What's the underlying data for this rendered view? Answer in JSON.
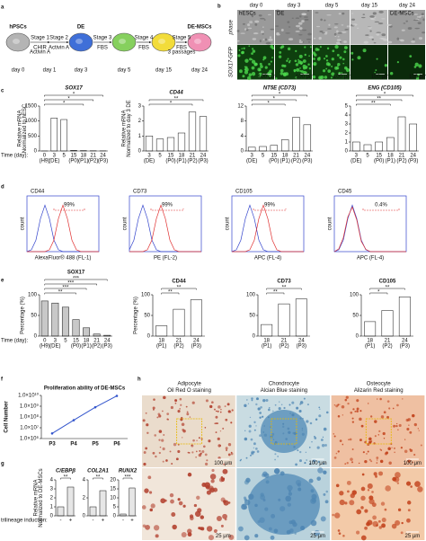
{
  "panel_labels": [
    "a",
    "b",
    "c",
    "d",
    "e",
    "f",
    "g",
    "h"
  ],
  "scheme": {
    "cells": [
      {
        "label": "hPSCs",
        "color": "#b4b4b4"
      },
      {
        "label": "DE",
        "color": "#3f6fd8"
      },
      {
        "color": "#86d05e"
      },
      {
        "color": "#f2dc3a"
      },
      {
        "label": "DE-MSCs",
        "color": "#f090b4"
      }
    ],
    "steps": [
      {
        "stage": "Stage 1",
        "reagents": [
          "CHIR",
          "Activin A"
        ]
      },
      {
        "stage": "Stage 2",
        "reagents": [
          "Activin A"
        ]
      },
      {
        "stage": "Stage 3",
        "reagents": [
          "FBS"
        ]
      },
      {
        "stage": "Stage 4",
        "reagents": [
          "FBS"
        ]
      },
      {
        "stage": "Stage 5",
        "reagents": [
          "FBS",
          "3 passages"
        ]
      }
    ],
    "days": [
      "day 0",
      "day 1",
      "day 3",
      "day 5",
      "day 15",
      "day 24"
    ]
  },
  "micrographs": {
    "days": [
      "day 0",
      "day 3",
      "day 5",
      "day 15",
      "day 24"
    ],
    "tags": [
      "hESCs",
      "DE",
      null,
      null,
      "DE-MSCs"
    ],
    "rows": [
      "phase",
      "SOX17-GFP"
    ],
    "scale_bar": "100 μm"
  },
  "chart_data": [
    {
      "type": "bar",
      "title": "SOX17",
      "categories": [
        "0",
        "3",
        "5",
        "15",
        "18",
        "21",
        "24"
      ],
      "category_sublabels": [
        "(H9)",
        "(DE)",
        null,
        "(P0)",
        "(P1)",
        "(P2)",
        "(P3)"
      ],
      "x_prefix": "Time (day):",
      "values": [
        1,
        1100,
        1050,
        20,
        12,
        8,
        5
      ],
      "bar_color": "#ffffff",
      "ylabel": [
        "Relative mRNA",
        "Normalized to hESC"
      ],
      "ylim": [
        0,
        1500
      ],
      "yticks": [
        0,
        500,
        1000,
        1500
      ],
      "annotations": [
        {
          "text": "*",
          "from": 0,
          "to": 6
        },
        {
          "text": "*",
          "from": 0,
          "to": 5
        },
        {
          "text": "*",
          "from": 0,
          "to": 4
        }
      ]
    },
    {
      "type": "bar",
      "title": "CD44",
      "categories": [
        "3",
        "5",
        "15",
        "18",
        "21",
        "24"
      ],
      "category_sublabels": [
        "(DE)",
        null,
        "(P0)",
        "(P1)",
        "(P2)",
        "(P3)"
      ],
      "values": [
        1,
        0.8,
        0.9,
        1.2,
        2.6,
        2.3
      ],
      "bar_color": "#ffffff",
      "ylabel": [
        "Relative mRNA",
        "Normalized to day 3 DE"
      ],
      "ylim": [
        0,
        3
      ],
      "yticks": [
        0,
        1,
        2,
        3
      ],
      "annotations": [
        {
          "text": "**",
          "from": 0,
          "to": 5
        },
        {
          "text": "*",
          "from": 0,
          "to": 4
        }
      ]
    },
    {
      "type": "bar",
      "title": "NT5E (CD73)",
      "categories": [
        "3",
        "5",
        "15",
        "18",
        "21",
        "24"
      ],
      "category_sublabels": [
        "(DE)",
        null,
        "(P0)",
        "(P1)",
        "(P2)",
        "(P3)"
      ],
      "values": [
        1,
        1.2,
        1.5,
        3,
        9,
        7
      ],
      "bar_color": "#ffffff",
      "ylim": [
        0,
        12
      ],
      "yticks": [
        0,
        4,
        8,
        12
      ],
      "annotations": [
        {
          "text": "*",
          "from": 0,
          "to": 5
        },
        {
          "text": "*",
          "from": 0,
          "to": 4
        },
        {
          "text": "*",
          "from": 0,
          "to": 3
        }
      ]
    },
    {
      "type": "bar",
      "title": "ENG (CD105)",
      "categories": [
        "3",
        "5",
        "15",
        "18",
        "21",
        "24"
      ],
      "category_sublabels": [
        "(DE)",
        null,
        "(P0)",
        "(P1)",
        "(P2)",
        "(P3)"
      ],
      "values": [
        1,
        0.7,
        1,
        1.5,
        3.8,
        3
      ],
      "bar_color": "#ffffff",
      "ylim": [
        0,
        5
      ],
      "yticks": [
        0,
        1,
        2,
        3,
        4,
        5
      ],
      "annotations": [
        {
          "text": "*",
          "from": 0,
          "to": 5
        },
        {
          "text": "**",
          "from": 0,
          "to": 4
        },
        {
          "text": "**",
          "from": 0,
          "to": 3
        }
      ]
    },
    {
      "type": "line",
      "title": "CD44",
      "xlabel": "AlexaFluor® 488 (FL-1)",
      "ylabel": "count",
      "x": [
        0,
        0.25,
        0.5,
        0.75,
        1,
        1.25,
        1.5,
        1.75,
        2,
        2.25,
        2.5,
        2.75,
        3,
        3.25,
        3.5,
        3.75,
        4
      ],
      "xlim": [
        0,
        4
      ],
      "ylim": [
        0,
        120
      ],
      "series": [
        {
          "color": "#3344cc",
          "values": [
            0,
            4,
            25,
            71,
            100,
            71,
            25,
            4,
            0,
            0,
            0,
            0,
            0,
            0,
            0,
            0,
            0
          ]
        },
        {
          "color": "#e03030",
          "values": [
            0,
            0,
            0,
            0,
            0,
            4,
            25,
            71,
            100,
            71,
            25,
            4,
            0,
            0,
            0,
            0,
            0
          ]
        }
      ],
      "gate": {
        "label": "99%",
        "range": [
          1.5,
          3.2
        ]
      }
    },
    {
      "type": "line",
      "title": "CD73",
      "xlabel": "PE (FL-2)",
      "ylabel": "count",
      "x": [
        0,
        0.25,
        0.5,
        0.75,
        1,
        1.25,
        1.5,
        1.75,
        2,
        2.25,
        2.5,
        2.75,
        3,
        3.25,
        3.5,
        3.75,
        4
      ],
      "xlim": [
        0,
        4
      ],
      "ylim": [
        0,
        120
      ],
      "series": [
        {
          "color": "#3344cc",
          "values": [
            4,
            25,
            71,
            100,
            71,
            25,
            4,
            0,
            0,
            0,
            0,
            0,
            0,
            0,
            0,
            0,
            0
          ]
        },
        {
          "color": "#e03030",
          "values": [
            0,
            0,
            0,
            0,
            4,
            25,
            71,
            100,
            71,
            25,
            4,
            0,
            0,
            0,
            0,
            0,
            0
          ]
        }
      ],
      "gate": {
        "label": "99%",
        "range": [
          1.2,
          3.0
        ]
      }
    },
    {
      "type": "line",
      "title": "CD105",
      "xlabel": "APC (FL-4)",
      "ylabel": "count",
      "x": [
        0,
        0.25,
        0.5,
        0.75,
        1,
        1.25,
        1.5,
        1.75,
        2,
        2.25,
        2.5,
        2.75,
        3,
        3.25,
        3.5,
        3.75,
        4
      ],
      "xlim": [
        0,
        4
      ],
      "ylim": [
        0,
        120
      ],
      "series": [
        {
          "color": "#3344cc",
          "values": [
            0,
            4,
            25,
            71,
            100,
            71,
            25,
            4,
            0,
            0,
            0,
            0,
            0,
            0,
            0,
            0,
            0
          ]
        },
        {
          "color": "#e03030",
          "values": [
            0,
            0,
            0,
            0,
            4,
            25,
            71,
            100,
            71,
            25,
            4,
            0,
            0,
            0,
            0,
            0,
            0
          ]
        }
      ],
      "gate": {
        "label": "99%",
        "range": [
          1.2,
          3.0
        ]
      }
    },
    {
      "type": "line",
      "title": "CD45",
      "xlabel": "APC (FL-4)",
      "ylabel": "count",
      "x": [
        0,
        0.25,
        0.5,
        0.75,
        1,
        1.25,
        1.5,
        1.75,
        2,
        2.25,
        2.5,
        2.75,
        3,
        3.25,
        3.5,
        3.75,
        4
      ],
      "xlim": [
        0,
        4
      ],
      "ylim": [
        0,
        120
      ],
      "series": [
        {
          "color": "#3344cc",
          "values": [
            0,
            4,
            25,
            71,
            100,
            71,
            25,
            4,
            0,
            0,
            0,
            0,
            0,
            0,
            0,
            0,
            0
          ]
        },
        {
          "color": "#e03030",
          "values": [
            0,
            6,
            30,
            75,
            96,
            68,
            22,
            5,
            0,
            0,
            0,
            0,
            0,
            0,
            0,
            0,
            0
          ]
        }
      ],
      "gate": {
        "label": "0.4%",
        "range": [
          1.6,
          3.6
        ]
      }
    },
    {
      "type": "bar",
      "title": "SOX17",
      "categories": [
        "0",
        "3",
        "5",
        "15",
        "18",
        "21",
        "24"
      ],
      "category_sublabels": [
        "(H9)",
        "(DE)",
        null,
        "(P0)",
        "(P1)",
        "(P2)",
        "(P3)"
      ],
      "x_prefix": "Time (day):",
      "values": [
        85,
        80,
        70,
        40,
        20,
        5,
        2
      ],
      "bar_color": "#c8c8c8",
      "ylabel": "Percentage (%)",
      "ylim": [
        0,
        100
      ],
      "yticks": [
        0,
        50,
        100
      ],
      "annotations": [
        {
          "text": "***",
          "from": 0,
          "to": 6
        },
        {
          "text": "***",
          "from": 0,
          "to": 5
        },
        {
          "text": "***",
          "from": 0,
          "to": 4
        },
        {
          "text": "**",
          "from": 0,
          "to": 3
        }
      ]
    },
    {
      "type": "bar",
      "title": "CD44",
      "categories": [
        "18",
        "21",
        "24"
      ],
      "category_sublabels": [
        "(P1)",
        "(P2)",
        "(P3)"
      ],
      "values": [
        25,
        65,
        88
      ],
      "bar_color": "#ffffff",
      "ylabel": "Percentage (%)",
      "ylim": [
        0,
        100
      ],
      "yticks": [
        0,
        50,
        100
      ],
      "annotations": [
        {
          "text": "**",
          "from": 0,
          "to": 2
        },
        {
          "text": "**",
          "from": 0,
          "to": 1
        }
      ]
    },
    {
      "type": "bar",
      "title": "CD73",
      "categories": [
        "18",
        "21",
        "24"
      ],
      "category_sublabels": [
        "(P1)",
        "(P2)",
        "(P3)"
      ],
      "values": [
        28,
        78,
        90
      ],
      "bar_color": "#ffffff",
      "ylim": [
        0,
        100
      ],
      "yticks": [
        0,
        50,
        100
      ],
      "annotations": [
        {
          "text": "**",
          "from": 0,
          "to": 2
        },
        {
          "text": "**",
          "from": 0,
          "to": 1
        }
      ]
    },
    {
      "type": "bar",
      "title": "CD105",
      "categories": [
        "18",
        "21",
        "24"
      ],
      "category_sublabels": [
        "(P1)",
        "(P2)",
        "(P3)"
      ],
      "values": [
        35,
        62,
        95
      ],
      "bar_color": "#ffffff",
      "ylim": [
        0,
        100
      ],
      "yticks": [
        0,
        50,
        100
      ],
      "annotations": [
        {
          "text": "**",
          "from": 0,
          "to": 2
        },
        {
          "text": "*",
          "from": 0,
          "to": 1
        }
      ]
    },
    {
      "type": "line",
      "title": "Proliferation ability of DE-MSCs",
      "ylabel": "Cell Number",
      "categories": [
        "P3",
        "P4",
        "P5",
        "P6"
      ],
      "values": [
        3000000,
        50000000,
        800000000,
        9000000000
      ],
      "color": "#3355cc",
      "log_y": true,
      "ylim": [
        1000000,
        10000000000
      ],
      "yticks": [
        {
          "value": 1000000,
          "label": "1.0×10⁶"
        },
        {
          "value": 10000000,
          "label": "1.0×10⁷"
        },
        {
          "value": 100000000,
          "label": "1.0×10⁸"
        },
        {
          "value": 1000000000,
          "label": "1.0×10⁹"
        },
        {
          "value": 10000000000,
          "label": "1.0×10¹⁰"
        }
      ]
    },
    {
      "type": "bar",
      "title": "C/EBPβ",
      "categories": [
        "-",
        "+"
      ],
      "x_prefix": "trilineage induction:",
      "values": [
        1,
        3.2
      ],
      "bar_color": "#e6e6e6",
      "ylabel": [
        "Relative mRNA",
        "Normalized to DE-MSCs"
      ],
      "ylim": [
        0,
        4
      ],
      "yticks": [
        0,
        1,
        2,
        3,
        4
      ],
      "annotations": [
        {
          "text": "**",
          "from": 0,
          "to": 1
        }
      ]
    },
    {
      "type": "bar",
      "title": "COL2A1",
      "categories": [
        "-",
        "+"
      ],
      "values": [
        1,
        2.8
      ],
      "bar_color": "#e6e6e6",
      "ylim": [
        0,
        4
      ],
      "yticks": [
        0,
        2,
        4
      ],
      "annotations": [
        {
          "text": "**",
          "from": 0,
          "to": 1
        }
      ]
    },
    {
      "type": "bar",
      "title": "RUNX2",
      "categories": [
        "-",
        "+"
      ],
      "values": [
        1,
        15.5
      ],
      "bar_color": "#e6e6e6",
      "ylim": [
        0,
        20
      ],
      "yticks": [
        0,
        5,
        10,
        15,
        20
      ],
      "annotations": [
        {
          "text": "***",
          "from": 0,
          "to": 1
        }
      ]
    }
  ],
  "staining": {
    "columns": [
      {
        "cell": "Adipocyte",
        "stain": "Oil Red O staining",
        "color": "#a83434"
      },
      {
        "cell": "Chondrocyte",
        "stain": "Alcian Blue staining",
        "color": "#2a64a8"
      },
      {
        "cell": "Osteocyte",
        "stain": "Alizarin Red staining",
        "color": "#c0401a"
      }
    ],
    "scale_bars": [
      "100 μm",
      "25 μm"
    ]
  }
}
